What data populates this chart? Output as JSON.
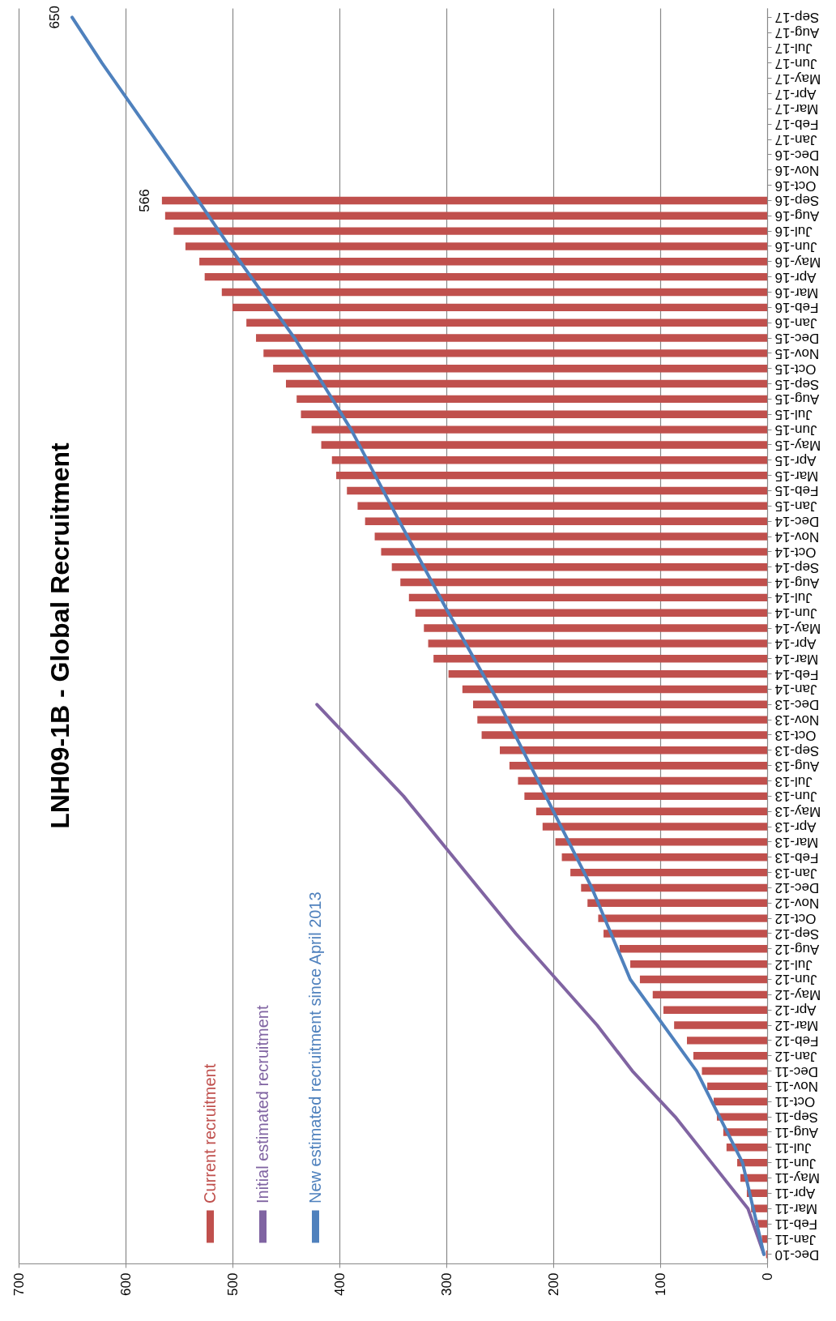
{
  "chart_data": {
    "type": "bar",
    "orientation": "horizontal",
    "title": "LNH09-1B - Global Recruitment",
    "categories": [
      "Sep-17",
      "Aug-17",
      "Jul-17",
      "Jun-17",
      "May-17",
      "Apr-17",
      "Mar-17",
      "Feb-17",
      "Jan-17",
      "Dec-16",
      "Nov-16",
      "Oct-16",
      "Sep-16",
      "Aug-16",
      "Jul-16",
      "Jun-16",
      "May-16",
      "Apr-16",
      "Mar-16",
      "Feb-16",
      "Jan-16",
      "Dec-15",
      "Nov-15",
      "Oct-15",
      "Sep-15",
      "Aug-15",
      "Jul-15",
      "Jun-15",
      "May-15",
      "Apr-15",
      "Mar-15",
      "Feb-15",
      "Jan-15",
      "Dec-14",
      "Nov-14",
      "Oct-14",
      "Sep-14",
      "Aug-14",
      "Jul-14",
      "Jun-14",
      "May-14",
      "Apr-14",
      "Mar-14",
      "Feb-14",
      "Jan-14",
      "Dec-13",
      "Nov-13",
      "Oct-13",
      "Sep-13",
      "Aug-13",
      "Jul-13",
      "Jun-13",
      "May-13",
      "Apr-13",
      "Mar-13",
      "Feb-13",
      "Jan-13",
      "Dec-12",
      "Nov-12",
      "Oct-12",
      "Sep-12",
      "Aug-12",
      "Jul-12",
      "Jun-12",
      "May-12",
      "Apr-12",
      "Mar-12",
      "Feb-12",
      "Jan-12",
      "Dec-11",
      "Nov-11",
      "Oct-11",
      "Sep-11",
      "Aug-11",
      "Jul-11",
      "Jun-11",
      "May-11",
      "Apr-11",
      "Mar-11",
      "Feb-11",
      "Jan-11",
      "Dec-10"
    ],
    "series": [
      {
        "name": "Current recruitment",
        "color": "#c0504d",
        "values": [
          null,
          null,
          null,
          null,
          null,
          null,
          null,
          null,
          null,
          null,
          null,
          null,
          566,
          563,
          555,
          544,
          531,
          526,
          510,
          500,
          487,
          478,
          471,
          462,
          450,
          440,
          436,
          426,
          417,
          407,
          403,
          393,
          383,
          376,
          367,
          361,
          351,
          343,
          335,
          329,
          321,
          317,
          312,
          298,
          285,
          275,
          271,
          267,
          250,
          241,
          233,
          227,
          216,
          210,
          198,
          192,
          184,
          174,
          168,
          158,
          153,
          138,
          128,
          119,
          107,
          97,
          87,
          75,
          69,
          61,
          56,
          50,
          47,
          41,
          38,
          28,
          25,
          19,
          15,
          9,
          5,
          1
        ],
        "value_labels": [
          null,
          null,
          null,
          null,
          null,
          null,
          null,
          null,
          null,
          null,
          null,
          null,
          "566",
          null,
          null,
          null,
          null,
          null,
          null,
          null,
          null,
          null,
          null,
          null,
          null,
          null,
          null,
          null,
          null,
          null,
          null,
          null,
          null,
          null,
          null,
          null,
          null,
          null,
          null,
          null,
          null,
          null,
          null,
          null,
          null,
          null,
          null,
          null,
          null,
          null,
          null,
          null,
          null,
          null,
          null,
          null,
          null,
          null,
          null,
          null,
          null,
          null,
          null,
          null,
          null,
          null,
          null,
          null,
          null,
          null,
          null,
          null,
          null,
          null,
          null,
          null,
          null,
          null,
          null,
          null,
          null,
          null
        ]
      },
      {
        "name": "Initial estimated recruitment",
        "type": "line",
        "color": "#8064a2",
        "x": [
          "Dec-10",
          "Mar-11",
          "Jun-11",
          "Sep-11",
          "Dec-11",
          "Mar-12",
          "Jun-12",
          "Sep-12",
          "Dec-12",
          "Jun-13",
          "Dec-13"
        ],
        "values": [
          3,
          18,
          52,
          86,
          126,
          159,
          197,
          235,
          270,
          340,
          421
        ]
      },
      {
        "name": "New estimated recruitment since April 2013",
        "type": "line",
        "color": "#4f81bd",
        "x": [
          "Dec-10",
          "Jun-11",
          "Dec-11",
          "Jun-12",
          "Dec-12",
          "Jun-13",
          "Dec-13",
          "Jun-14",
          "Dec-14",
          "Jun-15",
          "Dec-15",
          "Jun-16",
          "Sep-16",
          "Dec-16",
          "Jun-17",
          "Sep-17"
        ],
        "values": [
          3,
          23,
          66,
          128,
          164,
          207,
          250,
          298,
          344,
          389,
          442,
          503,
          532,
          562,
          622,
          650
        ],
        "value_labels": [
          null,
          null,
          null,
          null,
          null,
          null,
          null,
          null,
          null,
          null,
          null,
          null,
          null,
          null,
          null,
          "650"
        ]
      }
    ],
    "xlim": [
      700,
      0
    ],
    "xticks": [
      700,
      600,
      500,
      400,
      300,
      200,
      100,
      0
    ],
    "grid": "x",
    "legend": "bottom left"
  }
}
